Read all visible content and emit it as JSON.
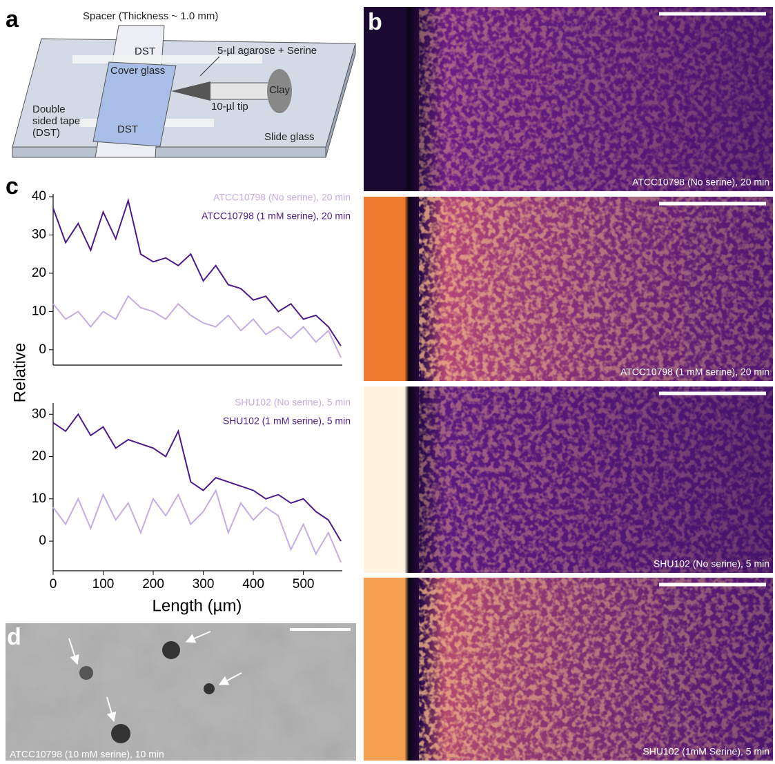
{
  "panel_labels": [
    "a",
    "b",
    "c",
    "d"
  ],
  "schematic": {
    "spacer": "Spacer (Thickness ~ 1.0 mm)",
    "dst_top": "DST",
    "agarose": "5-µl agarose + Serine",
    "cover_glass": "Cover glass",
    "clay": "Clay",
    "tip": "10-µl tip",
    "dst_label": [
      "Double",
      "sided tape",
      "(DST)"
    ],
    "dst_bottom": "DST",
    "slide_glass": "Slide glass"
  },
  "images": [
    "ATCC10798 (No serine), 20 min",
    "ATCC10798  (1 mM serine), 20 min",
    "SHU102 (No serine), 5 min",
    "SHU102 (1mM Serine), 5 min"
  ],
  "micrograph_caption": "ATCC10798 (10 mM serine), 10 min",
  "chart_ylabel": "Relative",
  "chart_data": [
    {
      "type": "line",
      "x": [
        0,
        25,
        50,
        75,
        100,
        125,
        150,
        175,
        200,
        225,
        250,
        275,
        300,
        325,
        350,
        375,
        400,
        425,
        450,
        475,
        500,
        525,
        550,
        575
      ],
      "xlim": [
        0,
        575
      ],
      "ylim": [
        -4,
        40
      ],
      "yticks": [
        0,
        10,
        20,
        30,
        40
      ],
      "series": [
        {
          "name": "ATCC10798 (No serine), 20 min",
          "color": "#c4ace2",
          "values": [
            12,
            8,
            10,
            6,
            10,
            8,
            14,
            11,
            10,
            8,
            12,
            9,
            7,
            6,
            9,
            5,
            8,
            4,
            6,
            3,
            6,
            2,
            5,
            -2
          ]
        },
        {
          "name": "ATCC10798 (1 mM serine), 20 min",
          "color": "#4a1a8a",
          "values": [
            37,
            28,
            33,
            26,
            36,
            29,
            39,
            25,
            23,
            24,
            22,
            25,
            18,
            22,
            17,
            16,
            13,
            14,
            10,
            12,
            8,
            9,
            6,
            1
          ]
        }
      ]
    },
    {
      "type": "line",
      "x": [
        0,
        25,
        50,
        75,
        100,
        125,
        150,
        175,
        200,
        225,
        250,
        275,
        300,
        325,
        350,
        375,
        400,
        425,
        450,
        475,
        500,
        525,
        550,
        575
      ],
      "xlim": [
        0,
        575
      ],
      "ylim": [
        -7,
        32
      ],
      "yticks": [
        0,
        10,
        20,
        30
      ],
      "xticks": [
        0,
        100,
        200,
        300,
        400,
        500
      ],
      "xlabel": "Length (µm)",
      "series": [
        {
          "name": "SHU102 (No serine), 5 min",
          "color": "#c4ace2",
          "values": [
            8,
            4,
            10,
            3,
            11,
            5,
            9,
            2,
            10,
            6,
            11,
            4,
            7,
            12,
            2,
            9,
            5,
            8,
            6,
            -2,
            4,
            -3,
            2,
            -5
          ]
        },
        {
          "name": "SHU102 (1 mM serine), 5 min",
          "color": "#4a1a8a",
          "values": [
            28,
            26,
            30,
            25,
            27,
            22,
            24,
            23,
            22,
            20,
            26,
            14,
            12,
            15,
            14,
            13,
            12,
            10,
            11,
            9,
            10,
            7,
            5,
            0
          ]
        }
      ]
    }
  ]
}
